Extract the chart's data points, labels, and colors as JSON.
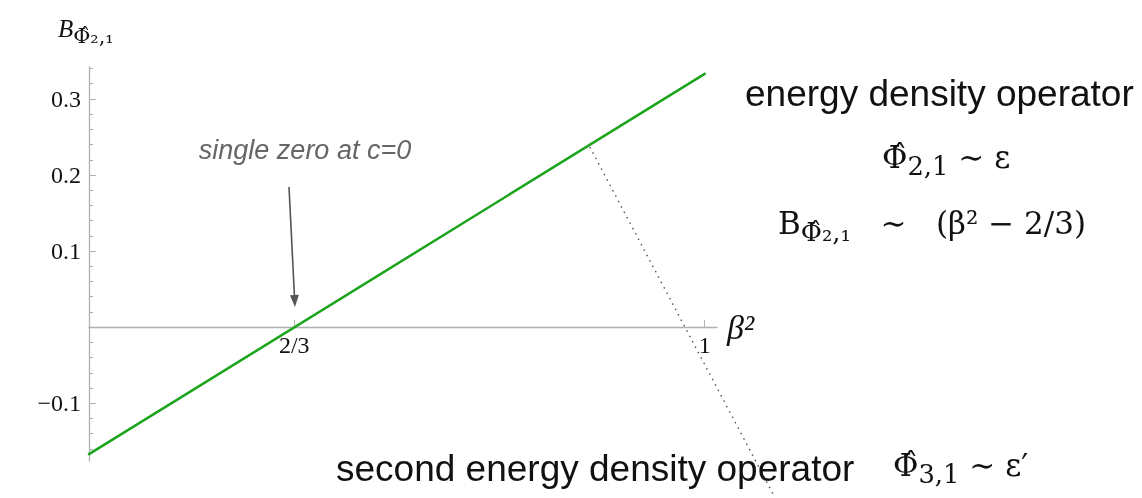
{
  "chart_data": {
    "type": "line",
    "xlabel": "β²",
    "ylabel": "B$_{Φ̂₂,₁}$",
    "x": [
      0.5,
      1
    ],
    "series": [
      {
        "color": "#1ca41c",
        "values": [
          -0.167,
          0.333
        ]
      }
    ],
    "xlim": [
      0.5,
      1.01
    ],
    "xticks": [
      {
        "value": 0.6667,
        "label": "2/3"
      },
      1
    ],
    "ylim": [
      -0.176,
      0.342
    ],
    "yticks": [
      {
        "value": -0.16,
        "label": null
      },
      {
        "value": -0.14,
        "label": null
      },
      {
        "value": -0.12,
        "label": null
      },
      -0.1,
      {
        "value": -0.08,
        "label": null
      },
      {
        "value": -0.06,
        "label": null
      },
      {
        "value": -0.04,
        "label": null
      },
      {
        "value": -0.02,
        "label": null
      },
      {
        "value": 0.02,
        "label": null
      },
      {
        "value": 0.04,
        "label": null
      },
      {
        "value": 0.06,
        "label": null
      },
      {
        "value": 0.08,
        "label": null
      },
      0.1,
      {
        "value": 0.12,
        "label": null
      },
      {
        "value": 0.14,
        "label": null
      },
      {
        "value": 0.16,
        "label": null
      },
      {
        "value": 0.18,
        "label": null
      },
      0.2,
      {
        "value": 0.22,
        "label": null
      },
      {
        "value": 0.24,
        "label": null
      },
      {
        "value": 0.26,
        "label": null
      },
      {
        "value": 0.28,
        "label": null
      },
      0.3,
      {
        "value": 0.32,
        "label": null
      },
      {
        "value": 0.34,
        "label": null
      }
    ],
    "grid": false,
    "marker": "none",
    "line_style": "solid",
    "annotations": [
      "single zero at c=0",
      {
        "text": "second energy density operator",
        "x": 0.907,
        "y": 0.24
      },
      "Φ̂$_{3,1}$ ∼ ε′",
      "energy density operator",
      "Φ̂$_{2,1}$ ∼ ε",
      "B$_{Φ̂₂,₁}$   ∼   (β² − 2/3)"
    ]
  }
}
